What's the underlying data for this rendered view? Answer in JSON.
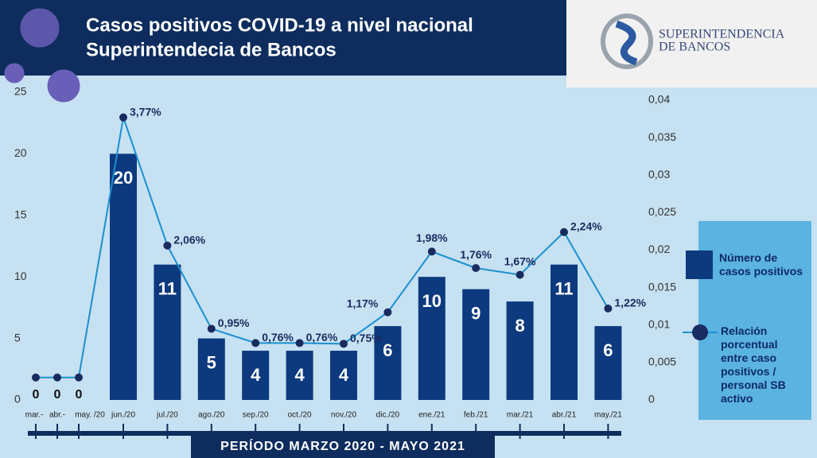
{
  "chart_data": {
    "type": "bar_line",
    "title": [
      "Casos positivos COVID-19 a nivel nacional",
      "Superintendecia de Bancos"
    ],
    "logo": [
      "SUPERINTENDENCIA",
      "DE BANCOS"
    ],
    "x_label": "PERÍODO MARZO 2020 - MAYO 2021",
    "categories": [
      "mar.-",
      "abr.-",
      "may. /20",
      "jun./20",
      "jul./20",
      "ago./20",
      "sep./20",
      "oct./20",
      "nov./20",
      "dic./20",
      "ene./21",
      "feb./21",
      "mar./21",
      "abr./21",
      "may./21"
    ],
    "series": [
      {
        "name": "Número de casos positivos",
        "type": "bar",
        "color": "#0d3a7e",
        "values": [
          0,
          0,
          0,
          20,
          11,
          5,
          4,
          4,
          4,
          6,
          10,
          9,
          8,
          11,
          6
        ]
      },
      {
        "name": "Relación porcentual entre caso positivos / personal SB activo",
        "type": "line",
        "axis": "y2",
        "color": "#1b8fd0",
        "marker_color": "#1a2b5f",
        "values": [
          0.003,
          0.003,
          0.003,
          0.0377,
          0.0206,
          0.0095,
          0.0076,
          0.0076,
          0.0075,
          0.0117,
          0.0198,
          0.0176,
          0.0167,
          0.0224,
          0.0122
        ],
        "value_labels": [
          null,
          null,
          null,
          "3,77%",
          "2,06%",
          "0,95%",
          "0,76%",
          "0,76%",
          "0,75%",
          "1,17%",
          "1,98%",
          "1,76%",
          "1,67%",
          "2,24%",
          "1,22%"
        ]
      }
    ],
    "ylim": [
      0,
      25
    ],
    "yticks": [
      0,
      5,
      10,
      15,
      20,
      25
    ],
    "y2lim": [
      0,
      0.04
    ],
    "y2ticks": [
      0,
      {
        "value": 0.005,
        "label": "0,005"
      },
      {
        "value": 0.01,
        "label": "0,01"
      },
      {
        "value": 0.015,
        "label": "0,015"
      },
      {
        "value": 0.02,
        "label": "0,02"
      },
      {
        "value": 0.025,
        "label": "0,025"
      },
      {
        "value": 0.03,
        "label": "0,03"
      },
      {
        "value": 0.035,
        "label": "0,035"
      },
      {
        "value": 0.04,
        "label": "0,04"
      }
    ]
  }
}
